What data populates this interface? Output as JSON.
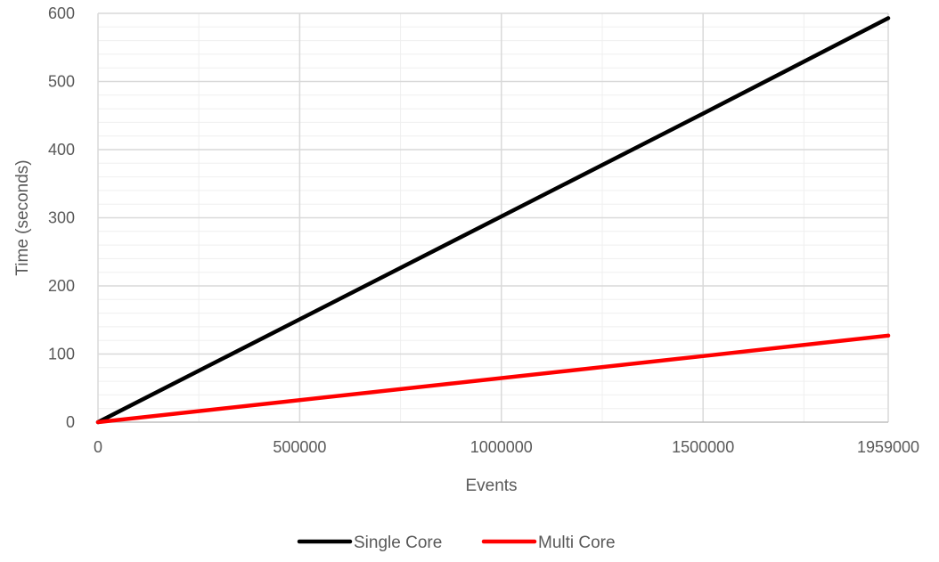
{
  "chart_data": {
    "type": "line",
    "title": "",
    "xlabel": "Events",
    "ylabel": "Time (seconds)",
    "x": [
      0,
      1500000,
      1959000
    ],
    "xticks": [
      0,
      500000,
      1000000,
      1500000,
      1959000
    ],
    "xtick_labels": [
      "0",
      "500000",
      "1000000",
      "1500000",
      "1959000"
    ],
    "xlim": [
      0,
      1959000
    ],
    "yticks": [
      0,
      100,
      200,
      300,
      400,
      500,
      600
    ],
    "ytick_labels": [
      "0",
      "100",
      "200",
      "300",
      "400",
      "500",
      "600"
    ],
    "ylim": [
      0,
      600
    ],
    "grid": true,
    "minor_grid": true,
    "legend_position": "bottom",
    "series": [
      {
        "name": "Single Core",
        "color": "#000000",
        "values": [
          0,
          453,
          593
        ]
      },
      {
        "name": "Multi Core",
        "color": "#ff0000",
        "values": [
          0,
          97,
          127
        ]
      }
    ]
  }
}
